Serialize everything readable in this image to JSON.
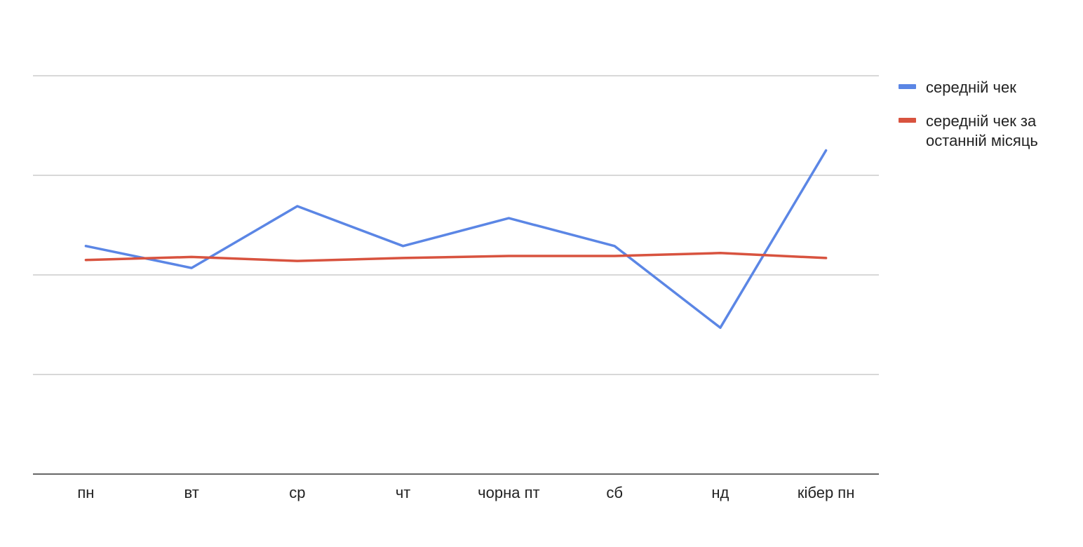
{
  "chart_data": {
    "type": "line",
    "title": "",
    "xlabel": "",
    "ylabel": "",
    "categories": [
      "пн",
      "вт",
      "ср",
      "чт",
      "чорна пт",
      "сб",
      "нд",
      "кібер пн"
    ],
    "ylim": [
      0,
      4
    ],
    "gridlines": [
      0,
      1,
      2,
      3,
      4
    ],
    "grid": true,
    "y_tick_labels_shown": false,
    "legend_position": "right",
    "series": [
      {
        "name": "середній чек",
        "color": "#5b86e5",
        "values": [
          2.29,
          2.07,
          2.69,
          2.29,
          2.57,
          2.29,
          1.47,
          3.25
        ]
      },
      {
        "name": "середній чек за останній місяць",
        "legend_lines": [
          "середній чек за",
          "останній місяць"
        ],
        "color": "#d8533f",
        "values": [
          2.15,
          2.18,
          2.14,
          2.17,
          2.19,
          2.19,
          2.22,
          2.17
        ]
      }
    ]
  }
}
